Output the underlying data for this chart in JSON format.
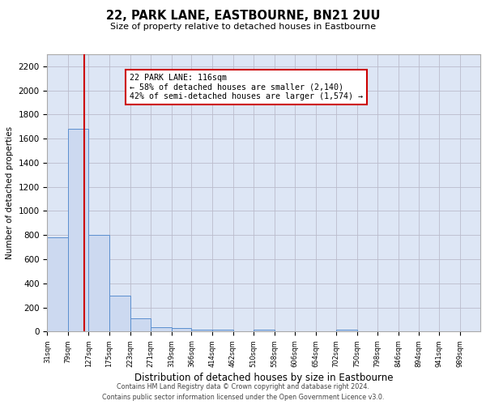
{
  "title": "22, PARK LANE, EASTBOURNE, BN21 2UU",
  "subtitle": "Size of property relative to detached houses in Eastbourne",
  "xlabel": "Distribution of detached houses by size in Eastbourne",
  "ylabel": "Number of detached properties",
  "bin_labels": [
    "31sqm",
    "79sqm",
    "127sqm",
    "175sqm",
    "223sqm",
    "271sqm",
    "319sqm",
    "366sqm",
    "414sqm",
    "462sqm",
    "510sqm",
    "558sqm",
    "606sqm",
    "654sqm",
    "702sqm",
    "750sqm",
    "798sqm",
    "846sqm",
    "894sqm",
    "941sqm",
    "989sqm"
  ],
  "bar_values": [
    780,
    1680,
    800,
    295,
    110,
    38,
    28,
    18,
    18,
    0,
    18,
    0,
    0,
    0,
    18,
    0,
    0,
    0,
    0,
    0,
    0
  ],
  "bar_color": "#ccd9f0",
  "bar_edge_color": "#5b8fcf",
  "bin_edges": [
    31,
    79,
    127,
    175,
    223,
    271,
    319,
    366,
    414,
    462,
    510,
    558,
    606,
    654,
    702,
    750,
    798,
    846,
    894,
    941,
    989,
    1037
  ],
  "vline_color": "#cc0000",
  "vline_x": 116,
  "annotation_title": "22 PARK LANE: 116sqm",
  "annotation_line1": "← 58% of detached houses are smaller (2,140)",
  "annotation_line2": "42% of semi-detached houses are larger (1,574) →",
  "annotation_box_color": "#ffffff",
  "annotation_box_edge": "#cc0000",
  "ylim": [
    0,
    2300
  ],
  "yticks": [
    0,
    200,
    400,
    600,
    800,
    1000,
    1200,
    1400,
    1600,
    1800,
    2000,
    2200
  ],
  "grid_color": "#bbbbcc",
  "background_color": "#dde6f5",
  "footer_line1": "Contains HM Land Registry data © Crown copyright and database right 2024.",
  "footer_line2": "Contains public sector information licensed under the Open Government Licence v3.0."
}
